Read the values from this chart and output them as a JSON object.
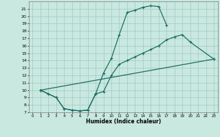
{
  "xlabel": "Humidex (Indice chaleur)",
  "xlim": [
    -0.5,
    23.5
  ],
  "ylim": [
    7,
    22
  ],
  "xticks": [
    0,
    1,
    2,
    3,
    4,
    5,
    6,
    7,
    8,
    9,
    10,
    11,
    12,
    13,
    14,
    15,
    16,
    17,
    18,
    19,
    20,
    21,
    22,
    23
  ],
  "yticks": [
    7,
    8,
    9,
    10,
    11,
    12,
    13,
    14,
    15,
    16,
    17,
    18,
    19,
    20,
    21
  ],
  "bg_color": "#c8e8e0",
  "grid_color": "#a0c8c0",
  "line_color": "#1a6b60",
  "curve1": {
    "x": [
      1,
      2,
      3,
      4,
      5,
      6,
      7,
      8,
      9,
      10,
      11,
      12,
      13,
      14,
      15,
      16,
      17
    ],
    "y": [
      10,
      9.5,
      9.0,
      7.5,
      7.3,
      7.2,
      7.3,
      9.5,
      12.3,
      14.3,
      17.5,
      20.5,
      20.8,
      21.2,
      21.4,
      21.3,
      18.8
    ]
  },
  "curve2": {
    "x": [
      1,
      2,
      3,
      4,
      5,
      6,
      7,
      8,
      9,
      10,
      11,
      12,
      13,
      14,
      15,
      16,
      17,
      18,
      19,
      20,
      23
    ],
    "y": [
      10,
      9.5,
      9.0,
      7.5,
      7.3,
      7.2,
      7.3,
      9.5,
      9.8,
      12.0,
      13.5,
      14.0,
      14.5,
      15.0,
      15.5,
      16.0,
      16.8,
      17.2,
      17.5,
      16.5,
      14.2
    ]
  },
  "curve3": {
    "x": [
      1,
      23
    ],
    "y": [
      10,
      14.2
    ]
  }
}
